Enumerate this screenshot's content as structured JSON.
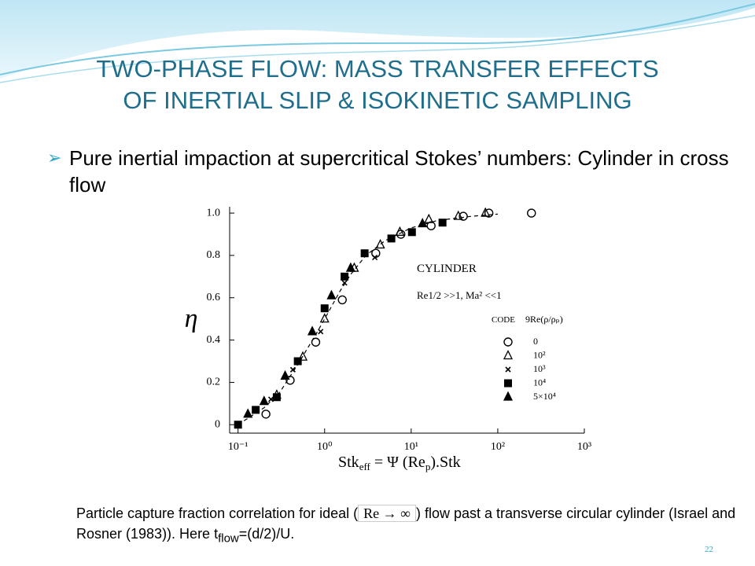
{
  "slide": {
    "title_lines": [
      "TWO-PHASE FLOW: MASS TRANSFER EFFECTS",
      "OF INERTIAL SLIP & ISOKINETIC SAMPLING"
    ],
    "bullet": "Pure inertial impaction at supercritical Stokes’ numbers: Cylinder in cross flow",
    "caption": [
      "Particle capture fraction correlation for ideal (",
      "Re → ∞",
      ") flow past a  transverse circular cylinder (Israel and Rosner (1983)). Here t",
      "flow",
      "=(d/2)/U."
    ],
    "page_number": "22"
  },
  "chart_data": {
    "type": "scatter",
    "y_label": "η",
    "x_label": [
      "Stk",
      "eff",
      " = Ψ (Re",
      "p",
      ").Stk"
    ],
    "annotations": [
      "CYLINDER",
      "Re1/2 >>1, Ma² <<1"
    ],
    "legend_title": "CODE",
    "legend_value_header": "9Re(ρ/ρₚ)",
    "x_log": true,
    "xlim": [
      0.08,
      1000
    ],
    "ylim": [
      -0.04,
      1.03
    ],
    "xticks": [
      {
        "value": 0.1,
        "label": "10⁻¹"
      },
      {
        "value": 1,
        "label": "10⁰"
      },
      {
        "value": 10,
        "label": "10¹"
      },
      {
        "value": 100,
        "label": "10²"
      },
      {
        "value": 1000,
        "label": "10³"
      }
    ],
    "yticks": [
      0,
      0.2,
      0.4,
      0.6,
      0.8,
      {
        "value": 1,
        "label": "1.0"
      }
    ],
    "series": [
      {
        "name": "0",
        "marker": "open-circle",
        "color": "#000000",
        "x": [
          0.21,
          0.4,
          0.79,
          1.6,
          3.9,
          7.6,
          17,
          40,
          79,
          245
        ],
        "values": [
          0.05,
          0.21,
          0.39,
          0.59,
          0.81,
          0.9,
          0.94,
          0.985,
          1.0,
          1.0
        ]
      },
      {
        "name": "10²",
        "marker": "open-triangle",
        "color": "#000000",
        "x": [
          0.28,
          0.56,
          1.0,
          2.2,
          4.4,
          7.4,
          16,
          35,
          72
        ],
        "values": [
          0.14,
          0.32,
          0.5,
          0.74,
          0.85,
          0.91,
          0.97,
          0.985,
          1.0
        ]
      },
      {
        "name": "10³",
        "marker": "x",
        "color": "#000000",
        "x": [
          0.24,
          0.43,
          0.9,
          1.7,
          3.8
        ],
        "values": [
          0.12,
          0.26,
          0.44,
          0.67,
          0.79
        ]
      },
      {
        "name": "10⁴",
        "marker": "filled-square",
        "color": "#000000",
        "x": [
          0.1,
          0.16,
          0.28,
          0.49,
          1.0,
          1.7,
          2.9,
          5.9,
          10.2,
          23
        ],
        "values": [
          0,
          0.07,
          0.13,
          0.3,
          0.55,
          0.7,
          0.81,
          0.88,
          0.91,
          0.955
        ]
      },
      {
        "name": "5×10⁴",
        "marker": "filled-triangle",
        "color": "#000000",
        "x": [
          0.13,
          0.2,
          0.35,
          0.72,
          1.2,
          2.0,
          13.5
        ],
        "values": [
          0.05,
          0.11,
          0.23,
          0.44,
          0.61,
          0.74,
          0.95
        ]
      }
    ],
    "curve": {
      "x": [
        0.1,
        0.2,
        0.3,
        0.5,
        0.8,
        1,
        1.5,
        2,
        3,
        5,
        10,
        20,
        50,
        100
      ],
      "values": [
        0,
        0.08,
        0.15,
        0.29,
        0.43,
        0.5,
        0.63,
        0.71,
        0.8,
        0.87,
        0.93,
        0.965,
        0.985,
        0.995
      ]
    }
  }
}
